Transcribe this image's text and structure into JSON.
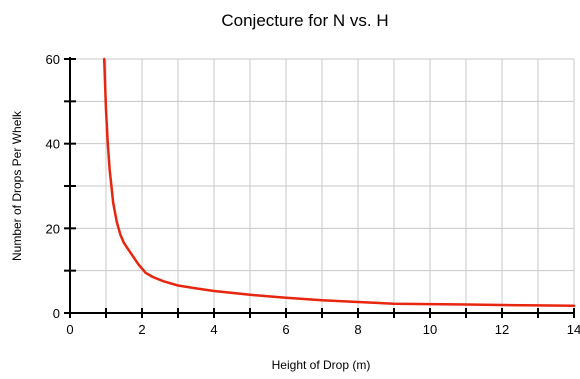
{
  "chart_data": {
    "type": "line",
    "title": "Conjecture for N vs. H",
    "xlabel": "Height of Drop (m)",
    "ylabel": "Number of Drops Per Whelk",
    "xlim": [
      0,
      14
    ],
    "ylim": [
      0,
      60
    ],
    "x_ticks": [
      0,
      2,
      4,
      6,
      8,
      10,
      12,
      14
    ],
    "y_ticks": [
      0,
      20,
      40,
      60
    ],
    "x_tick_labels": [
      "0",
      "2",
      "4",
      "6",
      "8",
      "10",
      "12",
      "14"
    ],
    "y_tick_labels": [
      "0",
      "20",
      "40",
      "60"
    ],
    "grid": true,
    "series_color": "#e8250f",
    "series": [
      {
        "x": [
          0.95,
          1.0,
          1.05,
          1.1,
          1.2,
          1.3,
          1.4,
          1.5,
          1.7,
          1.9,
          2.1,
          2.3,
          2.6,
          3.0,
          3.5,
          4.0,
          5.0,
          6.0,
          7.0,
          8.0,
          9.0,
          10.0,
          11.0,
          12.0,
          13.0,
          14.0
        ],
        "y": [
          60,
          48,
          40,
          34,
          26,
          21.5,
          18.5,
          16.5,
          14,
          11.5,
          9.5,
          8.5,
          7.5,
          6.5,
          5.8,
          5.2,
          4.3,
          3.6,
          3.0,
          2.6,
          2.2,
          2.1,
          2.0,
          1.9,
          1.8,
          1.7
        ]
      }
    ]
  }
}
